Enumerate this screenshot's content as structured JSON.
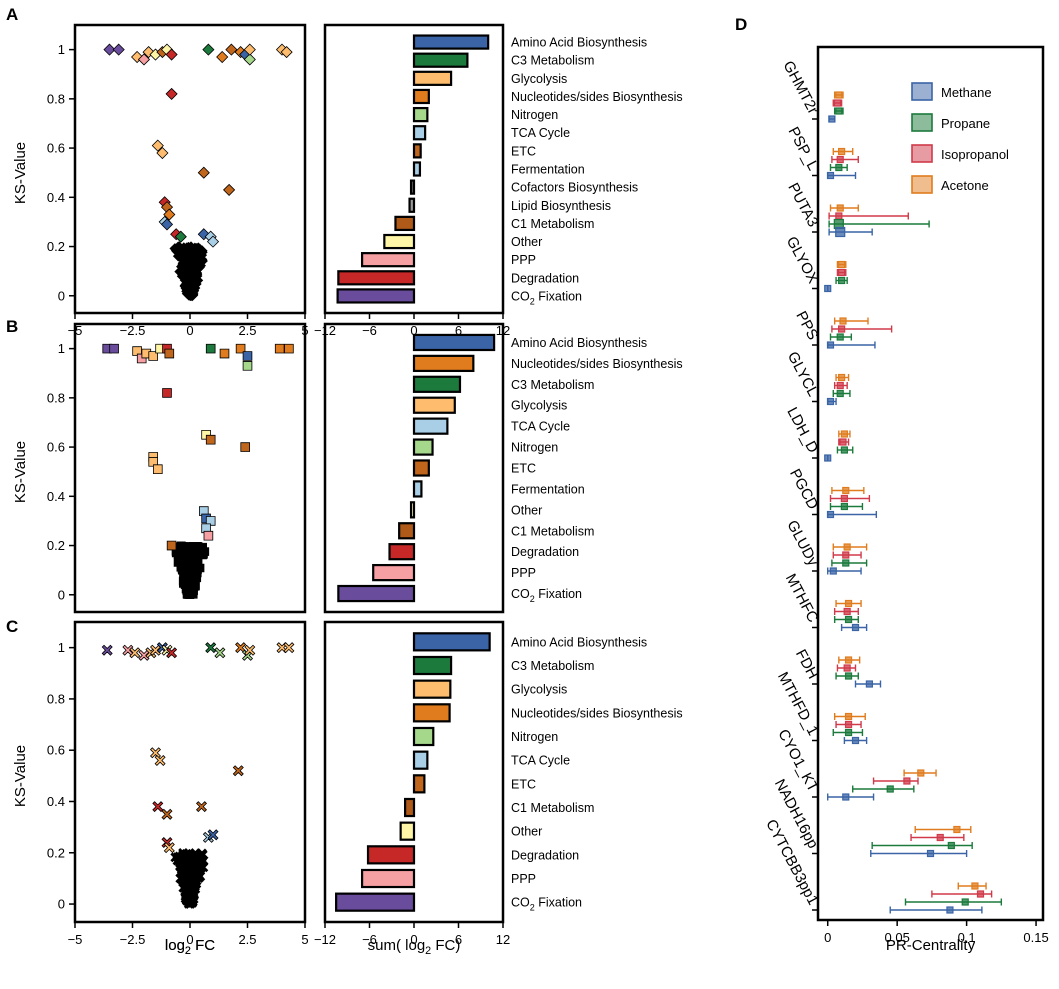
{
  "panels": {
    "A": "A",
    "B": "B",
    "C": "C",
    "D": "D"
  },
  "colors": {
    "Amino Acid Biosynthesis": "#3a64a6",
    "C3 Metabolism": "#1b7a3c",
    "Glycolysis": "#fdbc6e",
    "Nucleotides/sides Biosynthesis": "#e07c1e",
    "Nitrogen": "#a6d88c",
    "TCA Cycle": "#a8cfe6",
    "ETC": "#c0661c",
    "Fermentation": "#a8cfe6",
    "Cofactors Biosynthesis": "#6b6b6b",
    "Lipid Biosynthesis": "#9a9a9a",
    "C1 Metabolism": "#b05a1a",
    "Other": "#fff5a6",
    "PPP": "#f7a0a4",
    "Degradation": "#c62828",
    "CO2 Fixation": "#6a4c9c",
    "Methane": "#3a64a6",
    "Propane": "#1b7a3c",
    "Isopropanol": "#d03a4a",
    "Acetone": "#e07c1e"
  },
  "chart_data": [
    {
      "id": "A-scatter",
      "type": "scatter",
      "marker": "diamond",
      "xlabel": "log2 FC",
      "ylabel": "KS-Value",
      "xlim": [
        -5,
        5
      ],
      "ylim": [
        -0.07,
        1.1
      ],
      "xticks": [
        "−5",
        "−2.5",
        "0",
        "2.5",
        "5"
      ],
      "yticks": [
        "0",
        "0.2",
        "0.4",
        "0.6",
        "0.8",
        "1"
      ],
      "points": [
        {
          "x": -3.5,
          "y": 1.0,
          "c": "#6a4c9c"
        },
        {
          "x": -3.1,
          "y": 1.0,
          "c": "#6a4c9c"
        },
        {
          "x": -2.3,
          "y": 0.97,
          "c": "#fdbc6e"
        },
        {
          "x": -2.0,
          "y": 0.96,
          "c": "#f7a0a4"
        },
        {
          "x": -1.8,
          "y": 0.99,
          "c": "#fdbc6e"
        },
        {
          "x": -1.5,
          "y": 0.98,
          "c": "#fff5a6"
        },
        {
          "x": -1.2,
          "y": 0.99,
          "c": "#c0661c"
        },
        {
          "x": -1.0,
          "y": 1.0,
          "c": "#fff5a6"
        },
        {
          "x": -0.8,
          "y": 0.98,
          "c": "#c62828"
        },
        {
          "x": 0.8,
          "y": 1.0,
          "c": "#1b7a3c"
        },
        {
          "x": 1.4,
          "y": 0.97,
          "c": "#e07c1e"
        },
        {
          "x": 1.8,
          "y": 1.0,
          "c": "#c0661c"
        },
        {
          "x": 2.2,
          "y": 0.99,
          "c": "#e07c1e"
        },
        {
          "x": 2.4,
          "y": 0.98,
          "c": "#3a64a6"
        },
        {
          "x": 2.6,
          "y": 0.96,
          "c": "#a6d88c"
        },
        {
          "x": 2.6,
          "y": 1.0,
          "c": "#fdbc6e"
        },
        {
          "x": 4.0,
          "y": 1.0,
          "c": "#fdbc6e"
        },
        {
          "x": 4.2,
          "y": 0.99,
          "c": "#fdbc6e"
        },
        {
          "x": -0.8,
          "y": 0.82,
          "c": "#c62828"
        },
        {
          "x": -1.4,
          "y": 0.61,
          "c": "#fdbc6e"
        },
        {
          "x": -1.2,
          "y": 0.58,
          "c": "#fdbc6e"
        },
        {
          "x": 0.6,
          "y": 0.5,
          "c": "#c0661c"
        },
        {
          "x": 1.7,
          "y": 0.43,
          "c": "#c0661c"
        },
        {
          "x": -1.1,
          "y": 0.38,
          "c": "#c62828"
        },
        {
          "x": -1.0,
          "y": 0.36,
          "c": "#c0661c"
        },
        {
          "x": -0.9,
          "y": 0.33,
          "c": "#e07c1e"
        },
        {
          "x": -1.1,
          "y": 0.3,
          "c": "#a8cfe6"
        },
        {
          "x": -1.0,
          "y": 0.29,
          "c": "#3a64a6"
        },
        {
          "x": -0.6,
          "y": 0.25,
          "c": "#c62828"
        },
        {
          "x": -0.4,
          "y": 0.24,
          "c": "#1b7a3c"
        },
        {
          "x": 0.6,
          "y": 0.25,
          "c": "#3a64a6"
        },
        {
          "x": 0.9,
          "y": 0.24,
          "c": "#a8cfe6"
        },
        {
          "x": 1.0,
          "y": 0.22,
          "c": "#a8cfe6"
        }
      ]
    },
    {
      "id": "A-bars",
      "type": "bar",
      "orientation": "horizontal",
      "xlabel": "sum( log2 FC)",
      "xlim": [
        -12,
        12
      ],
      "xticks": [
        "−12",
        "−6",
        "0",
        "6",
        "12"
      ],
      "categories": [
        "Amino Acid Biosynthesis",
        "C3 Metabolism",
        "Glycolysis",
        "Nucleotides/sides Biosynthesis",
        "Nitrogen",
        "TCA Cycle",
        "ETC",
        "Fermentation",
        "Cofactors Biosynthesis",
        "Lipid Biosynthesis",
        "C1 Metabolism",
        "Other",
        "PPP",
        "Degradation",
        "CO2 Fixation"
      ],
      "values": [
        10,
        7.2,
        5,
        2,
        1.8,
        1.5,
        0.9,
        0.8,
        -0.4,
        -0.6,
        -2.5,
        -4,
        -7,
        -10.2,
        -10.3
      ]
    },
    {
      "id": "B-scatter",
      "type": "scatter",
      "marker": "square",
      "xlabel": "",
      "ylabel": "KS-Value",
      "xlim": [
        -5,
        5
      ],
      "ylim": [
        -0.07,
        1.1
      ],
      "yticks": [
        "0",
        "0.2",
        "0.4",
        "0.6",
        "0.8",
        "1"
      ],
      "points": [
        {
          "x": -3.6,
          "y": 1.0,
          "c": "#6a4c9c"
        },
        {
          "x": -3.3,
          "y": 1.0,
          "c": "#6a4c9c"
        },
        {
          "x": -2.3,
          "y": 0.99,
          "c": "#fdbc6e"
        },
        {
          "x": -2.1,
          "y": 0.96,
          "c": "#f7a0a4"
        },
        {
          "x": -1.9,
          "y": 0.98,
          "c": "#fdbc6e"
        },
        {
          "x": -1.6,
          "y": 0.97,
          "c": "#fdbc6e"
        },
        {
          "x": -1.3,
          "y": 1.0,
          "c": "#fff5a6"
        },
        {
          "x": -1.0,
          "y": 1.0,
          "c": "#c62828"
        },
        {
          "x": -0.9,
          "y": 0.98,
          "c": "#c0661c"
        },
        {
          "x": 0.9,
          "y": 1.0,
          "c": "#1b7a3c"
        },
        {
          "x": 1.5,
          "y": 0.98,
          "c": "#e07c1e"
        },
        {
          "x": 2.2,
          "y": 1.0,
          "c": "#e07c1e"
        },
        {
          "x": 2.5,
          "y": 0.97,
          "c": "#3a64a6"
        },
        {
          "x": 2.5,
          "y": 0.93,
          "c": "#a6d88c"
        },
        {
          "x": 3.9,
          "y": 1.0,
          "c": "#e07c1e"
        },
        {
          "x": 4.3,
          "y": 1.0,
          "c": "#e07c1e"
        },
        {
          "x": -1.0,
          "y": 0.82,
          "c": "#c62828"
        },
        {
          "x": 0.7,
          "y": 0.65,
          "c": "#fff5a6"
        },
        {
          "x": 0.9,
          "y": 0.63,
          "c": "#c0661c"
        },
        {
          "x": -1.6,
          "y": 0.56,
          "c": "#fdbc6e"
        },
        {
          "x": -1.6,
          "y": 0.54,
          "c": "#fdbc6e"
        },
        {
          "x": -1.4,
          "y": 0.51,
          "c": "#fdbc6e"
        },
        {
          "x": 2.4,
          "y": 0.6,
          "c": "#c0661c"
        },
        {
          "x": 0.6,
          "y": 0.34,
          "c": "#a8cfe6"
        },
        {
          "x": 0.7,
          "y": 0.31,
          "c": "#3a64a6"
        },
        {
          "x": 0.9,
          "y": 0.3,
          "c": "#a8cfe6"
        },
        {
          "x": 0.7,
          "y": 0.27,
          "c": "#a8cfe6"
        },
        {
          "x": 0.8,
          "y": 0.24,
          "c": "#f7a0a4"
        },
        {
          "x": -0.8,
          "y": 0.2,
          "c": "#c0661c"
        }
      ]
    },
    {
      "id": "B-bars",
      "type": "bar",
      "orientation": "horizontal",
      "xlim": [
        -12,
        12
      ],
      "categories": [
        "Amino Acid Biosynthesis",
        "Nucleotides/sides Biosynthesis",
        "C3 Metabolism",
        "Glycolysis",
        "TCA Cycle",
        "Nitrogen",
        "ETC",
        "Fermentation",
        "Other",
        "C1 Metabolism",
        "Degradation",
        "PPP",
        "CO2 Fixation"
      ],
      "values": [
        10.8,
        8,
        6.2,
        5.5,
        4.5,
        2.5,
        2,
        1,
        -0.4,
        -2,
        -3.3,
        -5.5,
        -10.2
      ]
    },
    {
      "id": "C-scatter",
      "type": "scatter",
      "marker": "cross",
      "xlabel": "log2 FC",
      "ylabel": "KS-Value",
      "xlim": [
        -5,
        5
      ],
      "ylim": [
        -0.07,
        1.1
      ],
      "xticks": [
        "−5",
        "−2.5",
        "0",
        "2.5",
        "5"
      ],
      "yticks": [
        "0",
        "0.2",
        "0.4",
        "0.6",
        "0.8",
        "1"
      ],
      "points": [
        {
          "x": -3.6,
          "y": 0.99,
          "c": "#6a4c9c"
        },
        {
          "x": -2.7,
          "y": 0.99,
          "c": "#f7a0a4"
        },
        {
          "x": -2.4,
          "y": 0.98,
          "c": "#fdbc6e"
        },
        {
          "x": -2.0,
          "y": 0.97,
          "c": "#f7a0a4"
        },
        {
          "x": -1.7,
          "y": 0.98,
          "c": "#fdbc6e"
        },
        {
          "x": -1.5,
          "y": 0.99,
          "c": "#fdbc6e"
        },
        {
          "x": -1.2,
          "y": 1.0,
          "c": "#3a64a6"
        },
        {
          "x": -1.0,
          "y": 0.99,
          "c": "#fff5a6"
        },
        {
          "x": -0.8,
          "y": 0.98,
          "c": "#c62828"
        },
        {
          "x": 0.9,
          "y": 1.0,
          "c": "#1b7a3c"
        },
        {
          "x": 1.3,
          "y": 0.98,
          "c": "#a6d88c"
        },
        {
          "x": 2.2,
          "y": 1.0,
          "c": "#e07c1e"
        },
        {
          "x": 2.5,
          "y": 0.97,
          "c": "#a6d88c"
        },
        {
          "x": 2.6,
          "y": 0.99,
          "c": "#fdbc6e"
        },
        {
          "x": 4.0,
          "y": 1.0,
          "c": "#fdbc6e"
        },
        {
          "x": 4.3,
          "y": 1.0,
          "c": "#fdbc6e"
        },
        {
          "x": -1.5,
          "y": 0.59,
          "c": "#fdbc6e"
        },
        {
          "x": -1.3,
          "y": 0.56,
          "c": "#fdbc6e"
        },
        {
          "x": 2.1,
          "y": 0.52,
          "c": "#c0661c"
        },
        {
          "x": -1.4,
          "y": 0.38,
          "c": "#c62828"
        },
        {
          "x": -1.0,
          "y": 0.35,
          "c": "#c0661c"
        },
        {
          "x": 0.5,
          "y": 0.38,
          "c": "#c0661c"
        },
        {
          "x": -1.0,
          "y": 0.24,
          "c": "#c62828"
        },
        {
          "x": -0.9,
          "y": 0.22,
          "c": "#fdbc6e"
        },
        {
          "x": 0.8,
          "y": 0.26,
          "c": "#a8cfe6"
        },
        {
          "x": 1.0,
          "y": 0.27,
          "c": "#3a64a6"
        }
      ]
    },
    {
      "id": "C-bars",
      "type": "bar",
      "orientation": "horizontal",
      "xlabel": "sum( log2 FC)",
      "xlim": [
        -12,
        12
      ],
      "xticks": [
        "−12",
        "−6",
        "0",
        "6",
        "12"
      ],
      "categories": [
        "Amino Acid Biosynthesis",
        "C3 Metabolism",
        "Glycolysis",
        "Nucleotides/sides Biosynthesis",
        "Nitrogen",
        "TCA Cycle",
        "ETC",
        "C1 Metabolism",
        "Other",
        "Degradation",
        "PPP",
        "CO2 Fixation"
      ],
      "values": [
        10.2,
        5,
        4.9,
        4.8,
        2.6,
        1.8,
        1.4,
        -1.2,
        -1.8,
        -6.2,
        -7,
        -10.5
      ]
    },
    {
      "id": "D-errorbars",
      "type": "scatter",
      "marker": "square-with-errorbars",
      "xlabel": "PR-Centrality",
      "xlim": [
        -0.007,
        0.155
      ],
      "xticks": [
        "0",
        "0.05",
        "0.1",
        "0.15"
      ],
      "legend": [
        "Methane",
        "Propane",
        "Isopropanol",
        "Acetone"
      ],
      "legend_position": "top-right",
      "series_order": [
        "Acetone",
        "Isopropanol",
        "Propane",
        "Methane"
      ],
      "categories": [
        "GHMT2r",
        "PSP_L",
        "PUTA3",
        "GLYOX",
        "PPS",
        "GLYCL",
        "LDH_D",
        "PGCD",
        "GLUDy",
        "MTHFC",
        "FDH",
        "MTHFD_1",
        "CYO1_KT",
        "NADH16pp",
        "CYTCBB3pp1"
      ],
      "points": [
        {
          "cat": "GHMT2r",
          "Acetone": [
            0.008,
            0.005,
            0.011
          ],
          "Isopropanol": [
            0.007,
            0.004,
            0.01
          ],
          "Propane": [
            0.008,
            0.005,
            0.011
          ],
          "Methane": [
            0.003,
            0.001,
            0.005
          ]
        },
        {
          "cat": "PSP_L",
          "Acetone": [
            0.01,
            0.004,
            0.018
          ],
          "Isopropanol": [
            0.009,
            0.003,
            0.022
          ],
          "Propane": [
            0.008,
            0.002,
            0.014
          ],
          "Methane": [
            0.002,
            0.0,
            0.02
          ]
        },
        {
          "cat": "PUTA3",
          "Acetone": [
            0.009,
            0.002,
            0.022
          ],
          "Isopropanol": [
            0.008,
            0.001,
            0.058
          ],
          "Propane": [
            0.008,
            0.001,
            0.073
          ],
          "Methane": [
            0.009,
            0.001,
            0.032
          ]
        },
        {
          "cat": "GLYOX",
          "Acetone": [
            0.01,
            0.007,
            0.013
          ],
          "Isopropanol": [
            0.01,
            0.007,
            0.013
          ],
          "Propane": [
            0.01,
            0.006,
            0.014
          ],
          "Methane": [
            0.0,
            0.0,
            0.0
          ]
        },
        {
          "cat": "PPS",
          "Acetone": [
            0.011,
            0.005,
            0.029
          ],
          "Isopropanol": [
            0.01,
            0.003,
            0.046
          ],
          "Propane": [
            0.009,
            0.002,
            0.017
          ],
          "Methane": [
            0.002,
            0.0,
            0.034
          ]
        },
        {
          "cat": "GLYCL",
          "Acetone": [
            0.01,
            0.006,
            0.015
          ],
          "Isopropanol": [
            0.009,
            0.005,
            0.014
          ],
          "Propane": [
            0.009,
            0.004,
            0.016
          ],
          "Methane": [
            0.002,
            0.0,
            0.006
          ]
        },
        {
          "cat": "LDH_D",
          "Acetone": [
            0.012,
            0.008,
            0.016
          ],
          "Isopropanol": [
            0.011,
            0.008,
            0.015
          ],
          "Propane": [
            0.012,
            0.007,
            0.018
          ],
          "Methane": [
            0.0,
            0.0,
            0.0
          ]
        },
        {
          "cat": "PGCD",
          "Acetone": [
            0.013,
            0.003,
            0.026
          ],
          "Isopropanol": [
            0.012,
            0.002,
            0.03
          ],
          "Propane": [
            0.012,
            0.002,
            0.025
          ],
          "Methane": [
            0.002,
            0.0,
            0.035
          ]
        },
        {
          "cat": "GLUDy",
          "Acetone": [
            0.014,
            0.004,
            0.028
          ],
          "Isopropanol": [
            0.013,
            0.004,
            0.024
          ],
          "Propane": [
            0.013,
            0.003,
            0.028
          ],
          "Methane": [
            0.004,
            0.0,
            0.024
          ]
        },
        {
          "cat": "MTHFC",
          "Acetone": [
            0.015,
            0.006,
            0.024
          ],
          "Isopropanol": [
            0.014,
            0.005,
            0.022
          ],
          "Propane": [
            0.015,
            0.005,
            0.022
          ],
          "Methane": [
            0.02,
            0.01,
            0.028
          ]
        },
        {
          "cat": "FDH",
          "Acetone": [
            0.015,
            0.008,
            0.023
          ],
          "Isopropanol": [
            0.014,
            0.007,
            0.02
          ],
          "Propane": [
            0.015,
            0.006,
            0.022
          ],
          "Methane": [
            0.03,
            0.02,
            0.038
          ]
        },
        {
          "cat": "MTHFD_1",
          "Acetone": [
            0.015,
            0.005,
            0.027
          ],
          "Isopropanol": [
            0.015,
            0.006,
            0.024
          ],
          "Propane": [
            0.015,
            0.004,
            0.025
          ],
          "Methane": [
            0.02,
            0.012,
            0.028
          ]
        },
        {
          "cat": "CYO1_KT",
          "Acetone": [
            0.067,
            0.055,
            0.078
          ],
          "Isopropanol": [
            0.057,
            0.033,
            0.065
          ],
          "Propane": [
            0.045,
            0.018,
            0.062
          ],
          "Methane": [
            0.013,
            0.0,
            0.033
          ]
        },
        {
          "cat": "NADH16pp",
          "Acetone": [
            0.093,
            0.063,
            0.103
          ],
          "Isopropanol": [
            0.081,
            0.06,
            0.098
          ],
          "Propane": [
            0.089,
            0.032,
            0.104
          ],
          "Methane": [
            0.074,
            0.031,
            0.1
          ]
        },
        {
          "cat": "CYTCBB3pp1",
          "Acetone": [
            0.106,
            0.094,
            0.114
          ],
          "Isopropanol": [
            0.11,
            0.075,
            0.118
          ],
          "Propane": [
            0.099,
            0.056,
            0.125
          ],
          "Methane": [
            0.088,
            0.045,
            0.111
          ]
        }
      ]
    }
  ]
}
